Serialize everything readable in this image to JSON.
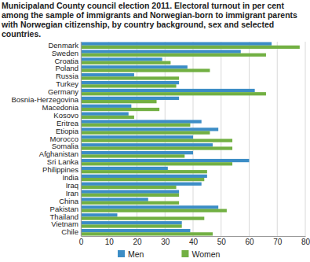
{
  "chart_data": {
    "type": "bar",
    "orientation": "horizontal",
    "title": "Municipaland County council election 2011. Electoral turnout in per cent among the sample of immigrants and Norwegian-born to immigrant parents with Norwegian citizenship, by country background, sex and selected countries.",
    "categories": [
      "Denmark",
      "Sweden",
      "Croatia",
      "Poland",
      "Russia",
      "Turkey",
      "Germany",
      "Bosnia-Herzegovina",
      "Macedonia",
      "Kosovo",
      "Eritrea",
      "Etiopia",
      "Morocco",
      "Somalia",
      "Afghanistan",
      "Sri Lanka",
      "Philippines",
      "India",
      "Iraq",
      "Iran",
      "China",
      "Pakistan",
      "Thailand",
      "Vietnam",
      "Chile"
    ],
    "series": [
      {
        "name": "Men",
        "color": "#3c8dc6",
        "values": [
          68,
          57,
          29,
          38,
          19,
          35,
          62,
          35,
          18,
          17,
          43,
          49,
          40,
          47,
          40,
          60,
          31,
          45,
          43,
          35,
          24,
          49,
          13,
          36,
          39
        ]
      },
      {
        "name": "Women",
        "color": "#72b043",
        "values": [
          78,
          66,
          32,
          46,
          35,
          34,
          66,
          27,
          28,
          19,
          39,
          46,
          54,
          54,
          37,
          54,
          45,
          44,
          34,
          35,
          35,
          52,
          44,
          36,
          47
        ]
      }
    ],
    "xlim": [
      0,
      80
    ],
    "xticks": [
      0,
      10,
      20,
      30,
      40,
      50,
      60,
      70,
      80
    ],
    "grid": true,
    "legend": "bottom"
  }
}
